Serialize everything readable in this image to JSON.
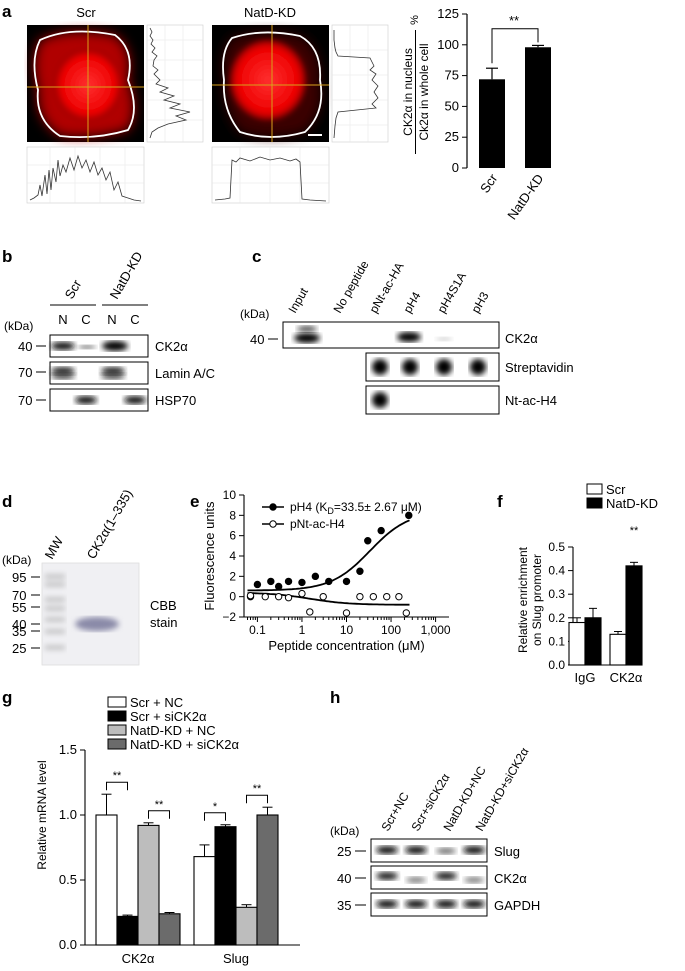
{
  "panels": {
    "a": "a",
    "b": "b",
    "c": "c",
    "d": "d",
    "e": "e",
    "f": "f",
    "g": "g",
    "h": "h"
  },
  "panel_a": {
    "image_labels": [
      "Scr",
      "NatD-KD"
    ],
    "chart": {
      "ylabel_num": "CK2α in nucleus",
      "ylabel_den": "Ck2α in whole cell",
      "ylabel_unit": "%",
      "sig": "**"
    }
  },
  "panel_b": {
    "groups": [
      "Scr",
      "NatD-KD"
    ],
    "lanes": [
      "N",
      "C",
      "N",
      "C"
    ],
    "kda": "(kDa)",
    "markers": [
      "40",
      "70",
      "70"
    ],
    "bands": [
      "CK2α",
      "Lamin A/C",
      "HSP70"
    ]
  },
  "panel_c": {
    "kda": "(kDa)",
    "marker": "40",
    "lanes": [
      "Input",
      "No peptide",
      "pNt-ac-HA",
      "pH4",
      "pH4S1A",
      "pH3"
    ],
    "bands": [
      "CK2α",
      "Streptavidin",
      "Nt-ac-H4"
    ]
  },
  "panel_d": {
    "kda": "(kDa)",
    "lanes": [
      "MW",
      "CK2α(1–335)"
    ],
    "markers": [
      "95",
      "70",
      "55",
      "40",
      "35",
      "25"
    ],
    "stain": [
      "CBB",
      "stain"
    ]
  },
  "panel_g": {
    "ylabel": "Relative mRNA level",
    "sig": [
      "**",
      "**",
      "*",
      "**"
    ]
  },
  "panel_h": {
    "kda": "(kDa)",
    "lanes": [
      "Scr+NC",
      "Scr+siCK2α",
      "NatD-KD+NC",
      "NatD-KD+siCK2α"
    ],
    "markers": [
      "25",
      "40",
      "35"
    ],
    "bands": [
      "Slug",
      "CK2α",
      "GAPDH"
    ]
  },
  "chart_data": [
    {
      "id": "a",
      "type": "bar",
      "categories": [
        "Scr",
        "NatD-KD"
      ],
      "values": [
        72,
        98
      ],
      "errors": [
        9,
        1.5
      ],
      "ylim": [
        0,
        125
      ],
      "yticks": [
        "0",
        "25",
        "50",
        "75",
        "100",
        "125"
      ],
      "ylabel": "CK2α in nucleus / Ck2α in whole cell %",
      "colors": [
        "#000000",
        "#000000"
      ]
    },
    {
      "id": "e",
      "type": "scatter",
      "xscale": "log",
      "xticks": [
        "0.1",
        "1",
        "10",
        "100",
        "1,000"
      ],
      "xlim": [
        0.05,
        2000
      ],
      "ylim": [
        -2,
        10
      ],
      "yticks": [
        "−2",
        "0",
        "2",
        "4",
        "6",
        "8",
        "10"
      ],
      "xlabel": "Peptide concentration (μM)",
      "ylabel": "Fluorescence units",
      "series": [
        {
          "name": "pH4 (KD=33.5± 2.67 μM)",
          "name_main": "pH4 (K",
          "name_sub": "D",
          "name_rest": "=33.5± 2.67 μM)",
          "filled": true,
          "points": [
            [
              0.07,
              0
            ],
            [
              0.1,
              1.2
            ],
            [
              0.2,
              1.5
            ],
            [
              0.3,
              1
            ],
            [
              0.5,
              1.5
            ],
            [
              1,
              1.4
            ],
            [
              2,
              2
            ],
            [
              4,
              1.5
            ],
            [
              10,
              1.5
            ],
            [
              20,
              2.5
            ],
            [
              30,
              5.5
            ],
            [
              60,
              6.5
            ],
            [
              250,
              8
            ]
          ],
          "fit": [
            0.6,
            8.4,
            33.5
          ]
        },
        {
          "name": "pNt-ac-H4",
          "filled": false,
          "points": [
            [
              0.07,
              0.1
            ],
            [
              0.15,
              0
            ],
            [
              0.3,
              0
            ],
            [
              0.5,
              -0.1
            ],
            [
              1,
              0.3
            ],
            [
              1.5,
              -1.5
            ],
            [
              3,
              0
            ],
            [
              10,
              -1.6
            ],
            [
              20,
              0
            ],
            [
              40,
              0
            ],
            [
              80,
              0
            ],
            [
              150,
              0
            ],
            [
              220,
              -1.6
            ]
          ],
          "fit": [
            0.4,
            -0.8,
            1.5
          ]
        }
      ]
    },
    {
      "id": "f",
      "type": "bar",
      "categories": [
        "IgG",
        "CK2α"
      ],
      "series": [
        {
          "name": "Scr",
          "values": [
            0.18,
            0.13
          ],
          "errors": [
            0.02,
            0.012
          ],
          "color": "#ffffff"
        },
        {
          "name": "NatD-KD",
          "values": [
            0.2,
            0.42
          ],
          "errors": [
            0.04,
            0.015
          ],
          "color": "#000000"
        }
      ],
      "ylim": [
        0,
        0.5
      ],
      "yticks": [
        "0.0",
        "0.1",
        "0.2",
        "0.3",
        "0.4",
        "0.5"
      ],
      "ylabel": "Relative enrichment on Slug promoter",
      "sig": "**"
    },
    {
      "id": "g",
      "type": "bar",
      "categories": [
        "CK2α",
        "Slug"
      ],
      "series": [
        {
          "name": "Scr + NC",
          "values": [
            1.0,
            0.68
          ],
          "errors": [
            0.16,
            0.09
          ],
          "color": "#ffffff"
        },
        {
          "name": "Scr + siCK2α",
          "values": [
            0.22,
            0.91
          ],
          "errors": [
            0.01,
            0.015
          ],
          "color": "#000000"
        },
        {
          "name": "NatD-KD + NC",
          "values": [
            0.92,
            0.29
          ],
          "errors": [
            0.02,
            0.02
          ],
          "color": "#bdbdbd"
        },
        {
          "name": "NatD-KD + siCK2α",
          "values": [
            0.24,
            1.0
          ],
          "errors": [
            0.01,
            0.06
          ],
          "color": "#6b6b6b"
        }
      ],
      "ylim": [
        0,
        1.5
      ],
      "yticks": [
        "0.0",
        "0.5",
        "1.0",
        "1.5"
      ],
      "ylabel": "Relative mRNA level"
    }
  ]
}
